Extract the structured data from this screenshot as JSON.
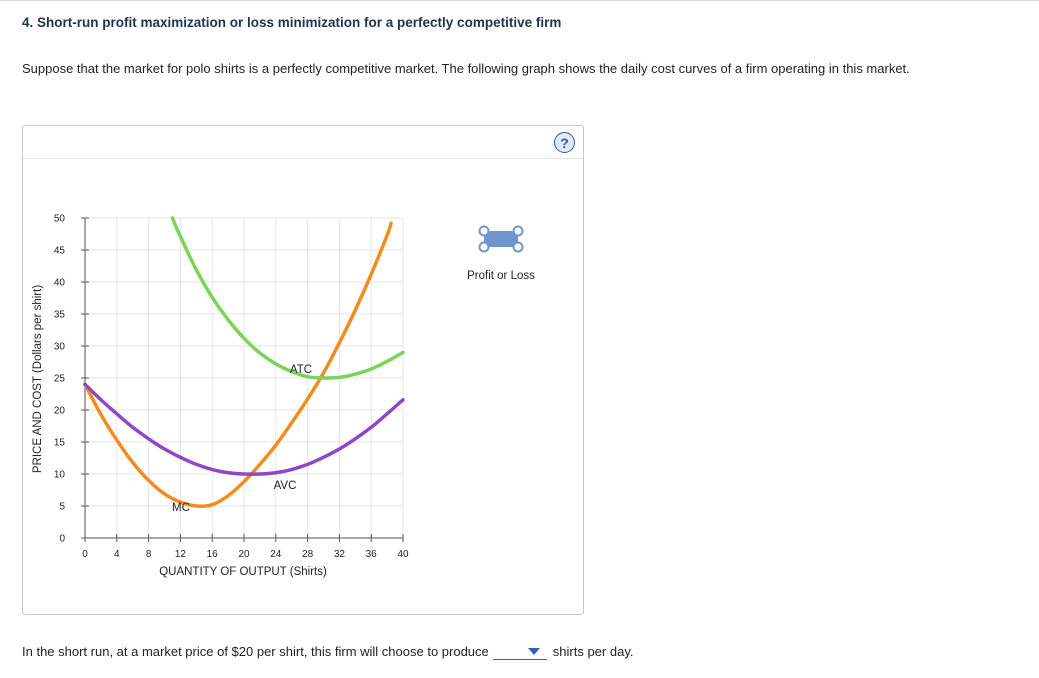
{
  "question": {
    "title": "4. Short-run profit maximization or loss minimization for a perfectly competitive firm",
    "prompt": "Suppose that the market for polo shirts is a perfectly competitive market. The following graph shows the daily cost curves of a firm operating in this market.",
    "answer_prefix": "In the short run, at a market price of $20 per shirt, this firm will choose to produce",
    "answer_suffix": "shirts per day.",
    "dropdown_value": ""
  },
  "graph": {
    "help_icon": "?",
    "palette_tool_label": "Profit or Loss"
  },
  "colors": {
    "mc": "#f28c1e",
    "atc": "#7cd35a",
    "avc": "#8e48c6",
    "profit_tool": "#6f97cf",
    "gridline": "#e6e6e6"
  },
  "chart_data": {
    "type": "line",
    "xlabel": "QUANTITY OF OUTPUT (Shirts)",
    "ylabel": "PRICE AND COST (Dollars per shirt)",
    "xlim": [
      0,
      40
    ],
    "ylim": [
      0,
      50
    ],
    "x_ticks": [
      0,
      4,
      8,
      12,
      16,
      20,
      24,
      28,
      32,
      36,
      40
    ],
    "y_ticks": [
      0,
      5,
      10,
      15,
      20,
      25,
      30,
      35,
      40,
      45,
      50
    ],
    "grid": true,
    "series": [
      {
        "name": "MC",
        "color": "#f28c1e",
        "points": [
          [
            0,
            24
          ],
          [
            2,
            19.3
          ],
          [
            4,
            15.3
          ],
          [
            6,
            11.8
          ],
          [
            8,
            9
          ],
          [
            10,
            6.9
          ],
          [
            12,
            5.6
          ],
          [
            14,
            5
          ],
          [
            16,
            5.2
          ],
          [
            18,
            6.6
          ],
          [
            20,
            8.8
          ],
          [
            22,
            11.5
          ],
          [
            24,
            14.5
          ],
          [
            26,
            18
          ],
          [
            28,
            21.7
          ],
          [
            30,
            25.8
          ],
          [
            32,
            30.5
          ],
          [
            34,
            35.6
          ],
          [
            36,
            41.2
          ],
          [
            38,
            47.3
          ],
          [
            38.5,
            49.2
          ]
        ]
      },
      {
        "name": "ATC",
        "color": "#7cd35a",
        "points": [
          [
            11,
            50
          ],
          [
            12,
            47.1
          ],
          [
            14,
            41.9
          ],
          [
            16,
            37.6
          ],
          [
            18,
            34.1
          ],
          [
            20,
            31.2
          ],
          [
            22,
            28.9
          ],
          [
            24,
            27.2
          ],
          [
            26,
            26
          ],
          [
            28,
            25.2
          ],
          [
            30,
            25
          ],
          [
            32,
            25.1
          ],
          [
            34,
            25.6
          ],
          [
            36,
            26.4
          ],
          [
            38,
            27.6
          ],
          [
            40,
            29
          ]
        ]
      },
      {
        "name": "AVC",
        "color": "#8e48c6",
        "points": [
          [
            0,
            24
          ],
          [
            2,
            21.6
          ],
          [
            4,
            19.4
          ],
          [
            6,
            17.3
          ],
          [
            8,
            15.5
          ],
          [
            10,
            13.9
          ],
          [
            12,
            12.6
          ],
          [
            14,
            11.5
          ],
          [
            16,
            10.7
          ],
          [
            18,
            10.2
          ],
          [
            20,
            10
          ],
          [
            22,
            10
          ],
          [
            24,
            10.2
          ],
          [
            26,
            10.7
          ],
          [
            28,
            11.5
          ],
          [
            30,
            12.6
          ],
          [
            32,
            13.9
          ],
          [
            34,
            15.5
          ],
          [
            36,
            17.3
          ],
          [
            38,
            19.4
          ],
          [
            40,
            21.6
          ]
        ]
      }
    ]
  }
}
